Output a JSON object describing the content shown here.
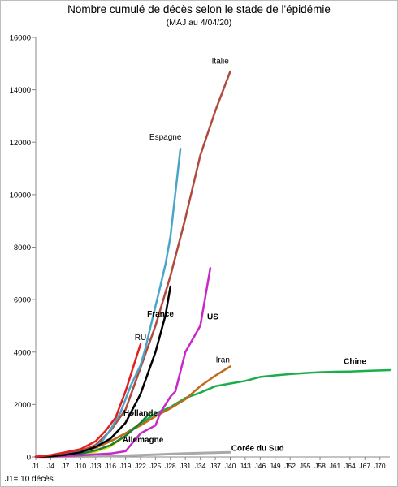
{
  "title": "Nombre cumulé de décès selon le stade de l'épidémie",
  "subtitle": "(MAJ au 4/04/20)",
  "footnote": "J1= 10 décès",
  "chart_data": {
    "type": "line",
    "title": "Nombre cumulé de décès selon le stade de l'épidémie",
    "subtitle": "(MAJ au 4/04/20)",
    "xlabel": "",
    "ylabel": "",
    "ylim": [
      0,
      16000
    ],
    "xlim": [
      1,
      72
    ],
    "yticks": [
      0,
      2000,
      4000,
      6000,
      8000,
      10000,
      12000,
      14000,
      16000
    ],
    "xticks": [
      "J1",
      "J4",
      "J7",
      "J10",
      "J13",
      "J16",
      "J19",
      "J22",
      "J25",
      "J28",
      "J31",
      "J34",
      "J37",
      "J40",
      "J43",
      "J46",
      "J49",
      "J52",
      "J55",
      "J58",
      "J61",
      "J64",
      "J67",
      "J70"
    ],
    "grid": "none",
    "legend": "labels on lines",
    "note": "J1= 10 décès",
    "series": [
      {
        "name": "Italie",
        "color": "#b04a3c",
        "x": [
          1,
          4,
          7,
          10,
          13,
          16,
          19,
          22,
          25,
          28,
          31,
          34,
          37,
          40
        ],
        "y": [
          10,
          50,
          110,
          230,
          460,
          1000,
          1800,
          3400,
          5000,
          6900,
          9100,
          11500,
          13200,
          14700
        ]
      },
      {
        "name": "Espagne",
        "color": "#4aa6c8",
        "x": [
          1,
          4,
          7,
          10,
          12,
          14,
          16,
          18,
          19,
          20,
          22,
          23,
          24,
          26,
          27,
          28,
          30
        ],
        "y": [
          10,
          30,
          90,
          190,
          300,
          520,
          1050,
          1700,
          2200,
          2700,
          3500,
          4150,
          4950,
          6530,
          7340,
          8400,
          11750
        ]
      },
      {
        "name": "France",
        "color": "#000000",
        "x": [
          1,
          4,
          7,
          10,
          13,
          16,
          19,
          22,
          25,
          27,
          28
        ],
        "y": [
          10,
          20,
          80,
          180,
          380,
          700,
          1300,
          2400,
          4000,
          5400,
          6500
        ]
      },
      {
        "name": "US",
        "color": "#c828c8",
        "x": [
          1,
          6,
          10,
          13,
          16,
          19,
          22,
          25,
          26,
          27,
          28,
          29,
          31,
          34,
          36
        ],
        "y": [
          10,
          30,
          60,
          100,
          130,
          220,
          900,
          1200,
          1700,
          2000,
          2300,
          2500,
          4000,
          5000,
          7200
        ]
      },
      {
        "name": "RU",
        "color": "#e32020",
        "x": [
          1,
          4,
          7,
          10,
          13,
          15,
          17,
          18,
          19,
          20,
          21,
          22
        ],
        "y": [
          10,
          70,
          180,
          300,
          600,
          1000,
          1500,
          2000,
          2500,
          3100,
          3700,
          4300
        ]
      },
      {
        "name": "Iran",
        "color": "#c06a1a",
        "x": [
          1,
          4,
          7,
          10,
          13,
          16,
          19,
          22,
          25,
          28,
          31,
          34,
          37,
          40
        ],
        "y": [
          10,
          40,
          100,
          200,
          350,
          600,
          900,
          1200,
          1550,
          1850,
          2200,
          2700,
          3100,
          3450
        ]
      },
      {
        "name": "Chine",
        "color": "#1aad4a",
        "x": [
          1,
          4,
          7,
          10,
          13,
          16,
          19,
          22,
          25,
          28,
          31,
          34,
          37,
          40,
          43,
          46,
          49,
          52,
          55,
          58,
          61,
          64,
          67,
          70,
          72
        ],
        "y": [
          10,
          40,
          100,
          200,
          370,
          600,
          900,
          1270,
          1660,
          1900,
          2250,
          2450,
          2700,
          2800,
          2900,
          3050,
          3110,
          3160,
          3200,
          3230,
          3250,
          3260,
          3280,
          3300,
          3310
        ]
      },
      {
        "name": "Hollande",
        "color": "#1c7a3a",
        "x": [
          1,
          4,
          7,
          10,
          13,
          16,
          19,
          22,
          24
        ],
        "y": [
          10,
          20,
          50,
          120,
          250,
          450,
          800,
          1300,
          1700
        ]
      },
      {
        "name": "Allemagne",
        "color": "#d9e11a",
        "x": [
          1,
          4,
          7,
          10,
          13,
          16,
          19,
          22
        ],
        "y": [
          10,
          20,
          40,
          90,
          200,
          400,
          800,
          1300
        ]
      },
      {
        "name": "Corée du Sud",
        "color": "#a9a9a9",
        "x": [
          1,
          4,
          7,
          10,
          13,
          16,
          19,
          22,
          25,
          28,
          31,
          34,
          37,
          40
        ],
        "y": [
          10,
          10,
          15,
          20,
          25,
          35,
          50,
          70,
          90,
          110,
          130,
          150,
          165,
          175
        ]
      }
    ]
  }
}
